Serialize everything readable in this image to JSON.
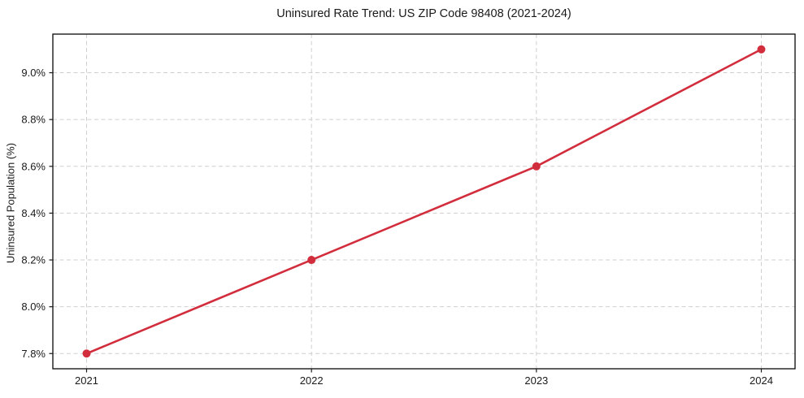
{
  "chart_data": {
    "type": "line",
    "title": "Uninsured Rate Trend: US ZIP Code 98408 (2021-2024)",
    "xlabel": "",
    "ylabel": "Uninsured Population (%)",
    "categories": [
      "2021",
      "2022",
      "2023",
      "2024"
    ],
    "x": [
      2021,
      2022,
      2023,
      2024
    ],
    "values": [
      7.8,
      8.2,
      8.6,
      9.1
    ],
    "x_tick_labels": [
      "2021",
      "2022",
      "2023",
      "2024"
    ],
    "y_ticks": [
      7.8,
      8.0,
      8.2,
      8.4,
      8.6,
      8.8,
      9.0
    ],
    "y_tick_labels": [
      "7.8%",
      "8.0%",
      "8.2%",
      "8.4%",
      "8.6%",
      "8.8%",
      "9.0%"
    ],
    "xlim": [
      2020.85,
      2024.15
    ],
    "ylim": [
      7.735,
      9.165
    ],
    "grid": true,
    "grid_style": "dashed",
    "legend": "none",
    "marker": "circle",
    "line_width": 2.6,
    "marker_radius": 5,
    "colors": {
      "line": "#d22d3d",
      "marker": "#d22d3d",
      "grid": "#cfcfcf",
      "spine": "#1a1a1a",
      "text": "#1a1a1a",
      "background": "#ffffff"
    }
  }
}
